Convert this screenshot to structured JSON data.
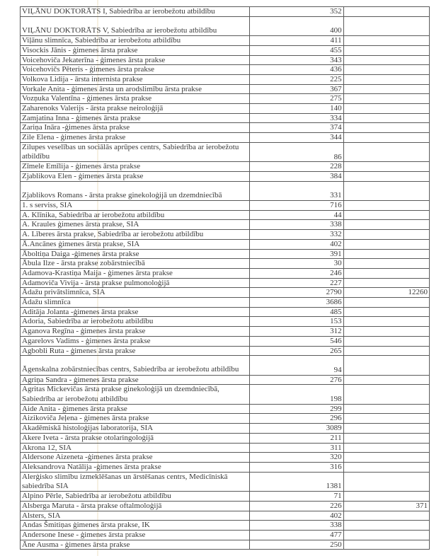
{
  "rows": [
    {
      "name": "VIĻĀNU DOKTORĀTS I, Sabiedrība ar ierobežotu atbildību",
      "value": "352",
      "extra": ""
    },
    {
      "name": "VIĻĀNU DOKTORĀTS V, Sabiedrība ar ierobežotu atbildību",
      "value": "400",
      "extra": "",
      "tall": true
    },
    {
      "name": "Viļānu slimnīca, Sabiedrība ar ierobežotu atbildību",
      "value": "411",
      "extra": ""
    },
    {
      "name": "Visockis Jānis - ģimenes ārsta prakse",
      "value": "455",
      "extra": ""
    },
    {
      "name": "Voicehoviča Jekaterīna - ģimenes ārsta prakse",
      "value": "343",
      "extra": ""
    },
    {
      "name": "Voicehovičs Pēteris - ģimenes ārsta prakse",
      "value": "436",
      "extra": ""
    },
    {
      "name": "Volkova Lidija - ārsta internista prakse",
      "value": "225",
      "extra": ""
    },
    {
      "name": "Vorkale Anita - ģimenes ārsta un arodslimību ārsta prakse",
      "value": "367",
      "extra": ""
    },
    {
      "name": "Vozņuka Valentīna - ģimenes ārsta prakse",
      "value": "275",
      "extra": ""
    },
    {
      "name": "Zaharenoks Valerijs - ārsta prakse neiroloģijā",
      "value": "140",
      "extra": ""
    },
    {
      "name": "Zamjatina Inna - ģimenes ārsta prakse",
      "value": "334",
      "extra": ""
    },
    {
      "name": "Zariņa Ināra -ģimenes ārsta prakse",
      "value": "374",
      "extra": ""
    },
    {
      "name": "Zile Elena - ģimenes ārsta prakse",
      "value": "344",
      "extra": ""
    },
    {
      "name": "Zilupes veselības un sociālās aprūpes centrs, Sabiedrība ar ierobežotu atbildību",
      "value": "86",
      "extra": "",
      "tall": true,
      "wrap": true
    },
    {
      "name": "Zīmele Emīlija - ģimenes ārsta prakse",
      "value": "228",
      "extra": ""
    },
    {
      "name": "Zjablikova Elen - ģimenes ārsta prakse",
      "value": "384",
      "extra": ""
    },
    {
      "name": "Zjablikovs Romans - ārsta prakse ginekoloģijā un dzemdniecībā",
      "value": "331",
      "extra": "",
      "tall": true
    },
    {
      "name": "1. s serviss, SIA",
      "value": "716",
      "extra": ""
    },
    {
      "name": "A. Klīnika, Sabiedrība ar ierobežotu atbildību",
      "value": "44",
      "extra": ""
    },
    {
      "name": "A. Kraules ģimenes ārsta prakse, SIA",
      "value": "338",
      "extra": ""
    },
    {
      "name": "A. Līberes ārsta prakse, Sabiedrība ar ierobežotu atbildību",
      "value": "332",
      "extra": ""
    },
    {
      "name": "Ā.Ancānes ģimenes ārsta prakse, SIA",
      "value": "402",
      "extra": ""
    },
    {
      "name": "Āboltiņa Daiga -ģimenes ārsta prakse",
      "value": "391",
      "extra": ""
    },
    {
      "name": "Ābula Ilze - ārsta prakse zobārstniecībā",
      "value": "30",
      "extra": ""
    },
    {
      "name": "Adamova-Krastiņa Maija - ģimenes ārsta prakse",
      "value": "246",
      "extra": ""
    },
    {
      "name": "Adamoviča Vivija - ārsta prakse pulmonoloģijā",
      "value": "227",
      "extra": ""
    },
    {
      "name": "Ādažu privātslimnīca, SIA",
      "value": "2790",
      "extra": "12260"
    },
    {
      "name": "Ādažu slimnīca",
      "value": "3686",
      "extra": ""
    },
    {
      "name": "Aditāja Jolanta -ģimenes ārsta prakse",
      "value": "485",
      "extra": ""
    },
    {
      "name": "Adoria, Sabiedrība ar ierobežotu atbildību",
      "value": "153",
      "extra": ""
    },
    {
      "name": "Aganova Regīna - ģimenes ārsta prakse",
      "value": "312",
      "extra": ""
    },
    {
      "name": "Agarelovs Vadims -  ģimenes ārsta prakse",
      "value": "546",
      "extra": ""
    },
    {
      "name": "Agbobli Ruta - ģimenes ārsta prakse",
      "value": "265",
      "extra": ""
    },
    {
      "name": "Āgenskalna zobārstniecības centrs,  Sabiedrība ar ierobežotu atbildību",
      "value": "94",
      "extra": "",
      "tall": true,
      "wrap": true
    },
    {
      "name": "Agriņa Sandra - ģimenes ārsta prakse",
      "value": "276",
      "extra": ""
    },
    {
      "name": "Agritas Mickevičas ārsta prakse ginekoloģijā un dzemdniecībā, Sabiedrība ar ierobežotu atbildību",
      "value": "198",
      "extra": "",
      "tall": true,
      "wrap": true
    },
    {
      "name": "Aide Anita - ģimenes ārsta prakse",
      "value": "299",
      "extra": ""
    },
    {
      "name": "Aizikoviča Jeļena - ģimenes ārsta prakse",
      "value": "296",
      "extra": ""
    },
    {
      "name": "Akadēmiskā histoloģijas laboratorija, SIA",
      "value": "3089",
      "extra": ""
    },
    {
      "name": "Akere Iveta - ārsta prakse otolaringoloģijā",
      "value": "211",
      "extra": ""
    },
    {
      "name": "Akrona 12, SIA",
      "value": "311",
      "extra": ""
    },
    {
      "name": "Aldersone Aizeneta -ģimenes ārsta prakse",
      "value": "320",
      "extra": ""
    },
    {
      "name": "Aleksandrova Natālija -ģimenes ārsta prakse",
      "value": "316",
      "extra": ""
    },
    {
      "name": "Alerģisko slimību izmeklēšanas un ārstēšanas centrs, Medicīniskā sabiedrība SIA",
      "value": "1381",
      "extra": "",
      "tall": true,
      "wrap": true
    },
    {
      "name": "Alpino Pērle, Sabiedrība ar ierobežotu atbildību",
      "value": "71",
      "extra": ""
    },
    {
      "name": "Alsberga Maruta - ārsta prakse oftalmoloģijā",
      "value": "226",
      "extra": "371"
    },
    {
      "name": "Alsters, SIA",
      "value": "402",
      "extra": ""
    },
    {
      "name": "Andas Šmitiņas ģimenes ārsta prakse, IK",
      "value": "338",
      "extra": ""
    },
    {
      "name": "Andersone Inese - ģimenes ārsta prakse",
      "value": "477",
      "extra": ""
    },
    {
      "name": "Āne Ausma - ģimenes ārsta prakse",
      "value": "250",
      "extra": ""
    }
  ]
}
